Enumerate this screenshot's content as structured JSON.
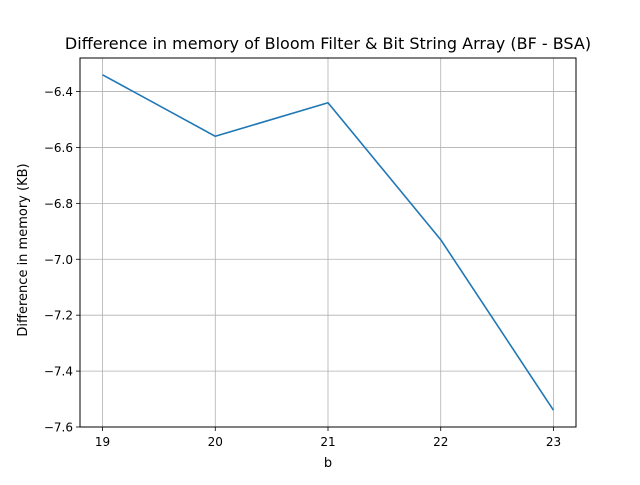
{
  "chart_data": {
    "type": "line",
    "title": "Difference in memory of Bloom Filter & Bit String Array (BF - BSA)",
    "xlabel": "b",
    "ylabel": "Difference in memory (KB)",
    "x": [
      19,
      20,
      21,
      22,
      23
    ],
    "xticks": [
      "19",
      "20",
      "21",
      "22",
      "23"
    ],
    "yticks": [
      "−6.4",
      "−6.6",
      "−6.8",
      "−7.0",
      "−7.2",
      "−7.4",
      "−7.6"
    ],
    "ytick_values": [
      -6.4,
      -6.6,
      -6.8,
      -7.0,
      -7.2,
      -7.4,
      -7.6
    ],
    "xlim": [
      18.8,
      23.2
    ],
    "ylim": [
      -7.6,
      -6.28
    ],
    "grid": true,
    "series": [
      {
        "values": [
          -6.34,
          -6.56,
          -6.44,
          -6.93,
          -7.54
        ],
        "color": "#1f77b4"
      }
    ]
  }
}
